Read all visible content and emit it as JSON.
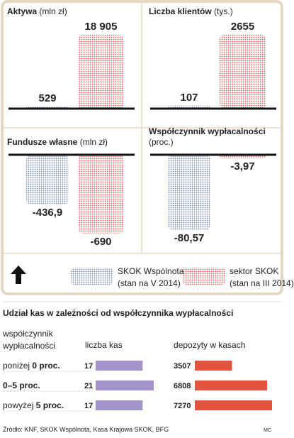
{
  "chart_data": [
    {
      "type": "bar",
      "title": "Aktywa",
      "unit": "(mln zł)",
      "values": [
        529,
        18905
      ],
      "value_labels": [
        "529",
        "18 905"
      ],
      "ylim": [
        0,
        20000
      ]
    },
    {
      "type": "bar",
      "title": "Liczba klientów",
      "unit": "(tys.)",
      "values": [
        107,
        2655
      ],
      "ylim": [
        0,
        2800
      ]
    },
    {
      "type": "bar",
      "title": "Fundusze własne",
      "unit": "(mln zł)",
      "values": [
        -436.9,
        -690
      ],
      "value_labels": [
        "-436,9",
        "-690"
      ],
      "ylim": [
        -780,
        0
      ]
    },
    {
      "type": "bar",
      "title": "Współczynnik wypłacalności",
      "unit": "(proc.)",
      "values": [
        -80.57,
        -3.97
      ],
      "value_labels": [
        "-80,57",
        "-3,97"
      ],
      "ylim": [
        -95,
        0
      ]
    },
    {
      "type": "table-bars",
      "title": "Udział kas w zależności od współczynnika wypłacalności",
      "columns": [
        "współczynnik wypłacalności",
        "liczba kas",
        "depozyty w kasach"
      ],
      "count_color": "#a393cc",
      "deposit_color": "#e4533f",
      "count_xlim": [
        0,
        21
      ],
      "deposit_xlim": [
        0,
        7270
      ],
      "rows": [
        {
          "label_parts": [
            {
              "text": "poniżej "
            },
            {
              "text": "0 proc.",
              "bold": true
            }
          ],
          "count": 17,
          "deposits": 3507
        },
        {
          "label_parts": [
            {
              "text": "0–5 proc.",
              "bold": true
            }
          ],
          "count": 21,
          "deposits": 6808
        },
        {
          "label_parts": [
            {
              "text": "powyżej "
            },
            {
              "text": "5 proc.",
              "bold": true
            }
          ],
          "count": 17,
          "deposits": 7270
        }
      ]
    }
  ],
  "legend": [
    {
      "name": "SKOK Wspólnota",
      "note": "(stan na V 2014)",
      "color": "#6f82c0"
    },
    {
      "name": "sektor SKOK",
      "note": "(stan na III 2014)",
      "color": "#e0564f"
    }
  ],
  "footer": {
    "source": "Źródło: KNF, SKOK Wspólnota, Kasa Krajowa SKOK, BFG",
    "author": "MC"
  }
}
